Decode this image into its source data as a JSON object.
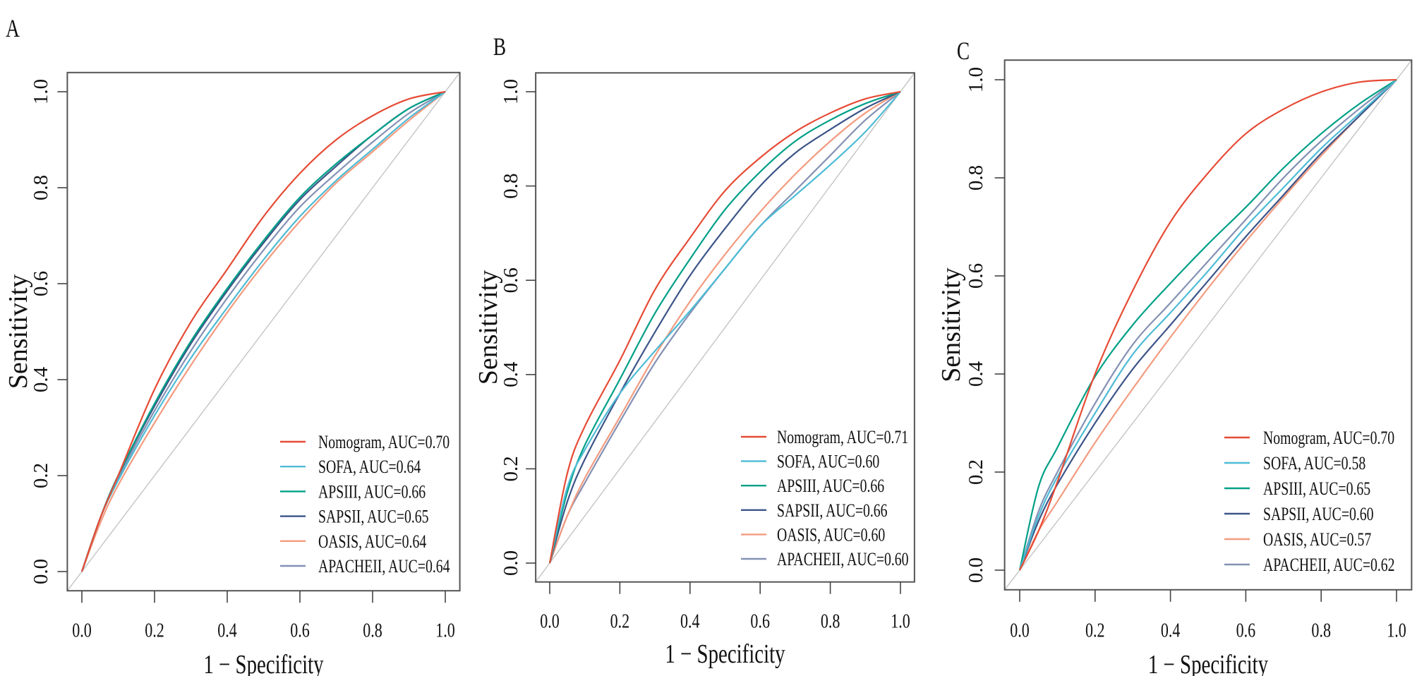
{
  "chart_data": [
    {
      "type": "line",
      "title": "A",
      "xlabel": "1 − Specificity",
      "ylabel": "Sensitivity",
      "xlim": [
        0,
        1
      ],
      "ylim": [
        0,
        1
      ],
      "xtick_labels": [
        "0.0",
        "0.2",
        "0.4",
        "0.6",
        "0.8",
        "1.0"
      ],
      "ytick_labels": [
        "0.0",
        "0.2",
        "0.4",
        "0.6",
        "0.8",
        "1.0"
      ],
      "grid": false,
      "legend_position": "bottom-right",
      "reference_line": "diagonal",
      "x": [
        0,
        0.05,
        0.1,
        0.2,
        0.3,
        0.4,
        0.5,
        0.6,
        0.7,
        0.8,
        0.9,
        1
      ],
      "series": [
        {
          "name": "Nomogram",
          "label": "Nomogram, AUC=0.70",
          "auc": 0.7,
          "color": "#E64B35",
          "values": [
            0,
            0.11,
            0.2,
            0.38,
            0.52,
            0.63,
            0.74,
            0.83,
            0.9,
            0.95,
            0.985,
            1
          ]
        },
        {
          "name": "SOFA",
          "label": "SOFA, AUC=0.64",
          "auc": 0.64,
          "color": "#4DBBD5",
          "values": [
            0,
            0.11,
            0.19,
            0.325,
            0.445,
            0.55,
            0.65,
            0.74,
            0.815,
            0.88,
            0.945,
            1
          ]
        },
        {
          "name": "APSIII",
          "label": "APSIII, AUC=0.66",
          "auc": 0.66,
          "color": "#00A087",
          "values": [
            0,
            0.11,
            0.2,
            0.35,
            0.48,
            0.59,
            0.69,
            0.78,
            0.85,
            0.91,
            0.965,
            1
          ]
        },
        {
          "name": "SAPSII",
          "label": "SAPSII, AUC=0.65",
          "auc": 0.65,
          "color": "#3C5488",
          "values": [
            0,
            0.11,
            0.2,
            0.345,
            0.475,
            0.585,
            0.685,
            0.775,
            0.845,
            0.91,
            0.965,
            1
          ]
        },
        {
          "name": "OASIS",
          "label": "OASIS, AUC=0.64",
          "auc": 0.64,
          "color": "#F39B7F",
          "values": [
            0,
            0.1,
            0.18,
            0.31,
            0.43,
            0.54,
            0.64,
            0.73,
            0.81,
            0.875,
            0.94,
            1
          ]
        },
        {
          "name": "APACHEII",
          "label": "APACHEII, AUC=0.64",
          "auc": 0.64,
          "color": "#8491B4",
          "values": [
            0,
            0.11,
            0.195,
            0.335,
            0.46,
            0.57,
            0.67,
            0.76,
            0.83,
            0.895,
            0.955,
            1
          ]
        }
      ]
    },
    {
      "type": "line",
      "title": "B",
      "xlabel": "1 − Specificity",
      "ylabel": "Sensitivity",
      "xlim": [
        0,
        1
      ],
      "ylim": [
        0,
        1
      ],
      "xtick_labels": [
        "0.0",
        "0.2",
        "0.4",
        "0.6",
        "0.8",
        "1.0"
      ],
      "ytick_labels": [
        "0.0",
        "0.2",
        "0.4",
        "0.6",
        "0.8",
        "1.0"
      ],
      "grid": false,
      "legend_position": "bottom-right",
      "reference_line": "diagonal",
      "x": [
        0,
        0.05,
        0.1,
        0.2,
        0.3,
        0.4,
        0.5,
        0.6,
        0.7,
        0.8,
        0.9,
        1
      ],
      "series": [
        {
          "name": "Nomogram",
          "label": "Nomogram, AUC=0.71",
          "auc": 0.71,
          "color": "#E64B35",
          "values": [
            0,
            0.19,
            0.29,
            0.43,
            0.58,
            0.69,
            0.79,
            0.86,
            0.915,
            0.955,
            0.985,
            1
          ]
        },
        {
          "name": "SOFA",
          "label": "SOFA, AUC=0.60",
          "auc": 0.6,
          "color": "#4DBBD5",
          "values": [
            0,
            0.16,
            0.24,
            0.36,
            0.45,
            0.535,
            0.625,
            0.715,
            0.78,
            0.845,
            0.915,
            1
          ]
        },
        {
          "name": "APSIII",
          "label": "APSIII, AUC=0.66",
          "auc": 0.66,
          "color": "#00A087",
          "values": [
            0,
            0.15,
            0.25,
            0.39,
            0.53,
            0.645,
            0.75,
            0.83,
            0.895,
            0.94,
            0.975,
            1
          ]
        },
        {
          "name": "SAPSII",
          "label": "SAPSII, AUC=0.66",
          "auc": 0.66,
          "color": "#3C5488",
          "values": [
            0,
            0.13,
            0.22,
            0.36,
            0.49,
            0.61,
            0.71,
            0.8,
            0.87,
            0.92,
            0.965,
            1
          ]
        },
        {
          "name": "OASIS",
          "label": "OASIS, AUC=0.60",
          "auc": 0.6,
          "color": "#F39B7F",
          "values": [
            0,
            0.1,
            0.18,
            0.31,
            0.44,
            0.555,
            0.655,
            0.745,
            0.825,
            0.895,
            0.955,
            1
          ]
        },
        {
          "name": "APACHEII",
          "label": "APACHEII, AUC=0.60",
          "auc": 0.6,
          "color": "#8491B4",
          "values": [
            0,
            0.1,
            0.17,
            0.3,
            0.425,
            0.53,
            0.625,
            0.715,
            0.79,
            0.865,
            0.94,
            1
          ]
        }
      ]
    },
    {
      "type": "line",
      "title": "C",
      "xlabel": "1 − Specificity",
      "ylabel": "Sensitivity",
      "xlim": [
        0,
        1
      ],
      "ylim": [
        0,
        1
      ],
      "xtick_labels": [
        "0.0",
        "0.2",
        "0.4",
        "0.6",
        "0.8",
        "1.0"
      ],
      "ytick_labels": [
        "0.0",
        "0.2",
        "0.4",
        "0.6",
        "0.8",
        "1.0"
      ],
      "grid": false,
      "legend_position": "bottom-right",
      "reference_line": "diagonal",
      "x": [
        0,
        0.05,
        0.1,
        0.2,
        0.3,
        0.4,
        0.5,
        0.6,
        0.7,
        0.8,
        0.9,
        1
      ],
      "series": [
        {
          "name": "Nomogram",
          "label": "Nomogram, AUC=0.70",
          "auc": 0.7,
          "color": "#E64B35",
          "values": [
            0,
            0.08,
            0.18,
            0.4,
            0.57,
            0.71,
            0.81,
            0.89,
            0.94,
            0.975,
            0.995,
            1
          ]
        },
        {
          "name": "SOFA",
          "label": "SOFA, AUC=0.58",
          "auc": 0.58,
          "color": "#4DBBD5",
          "values": [
            0,
            0.11,
            0.19,
            0.32,
            0.44,
            0.525,
            0.61,
            0.7,
            0.78,
            0.86,
            0.93,
            1
          ]
        },
        {
          "name": "APSIII",
          "label": "APSIII, AUC=0.65",
          "auc": 0.65,
          "color": "#00A087",
          "values": [
            0,
            0.17,
            0.25,
            0.395,
            0.5,
            0.585,
            0.665,
            0.74,
            0.82,
            0.89,
            0.95,
            1
          ]
        },
        {
          "name": "SAPSII",
          "label": "SAPSII, AUC=0.60",
          "auc": 0.6,
          "color": "#3C5488",
          "values": [
            0,
            0.1,
            0.175,
            0.3,
            0.41,
            0.5,
            0.59,
            0.68,
            0.765,
            0.85,
            0.925,
            1
          ]
        },
        {
          "name": "OASIS",
          "label": "OASIS, AUC=0.57",
          "auc": 0.57,
          "color": "#F39B7F",
          "values": [
            0,
            0.08,
            0.14,
            0.26,
            0.37,
            0.475,
            0.575,
            0.67,
            0.76,
            0.845,
            0.925,
            1
          ]
        },
        {
          "name": "APACHEII",
          "label": "APACHEII, AUC=0.62",
          "auc": 0.62,
          "color": "#8491B4",
          "values": [
            0,
            0.12,
            0.2,
            0.34,
            0.46,
            0.545,
            0.63,
            0.715,
            0.8,
            0.875,
            0.94,
            1
          ]
        }
      ]
    }
  ]
}
